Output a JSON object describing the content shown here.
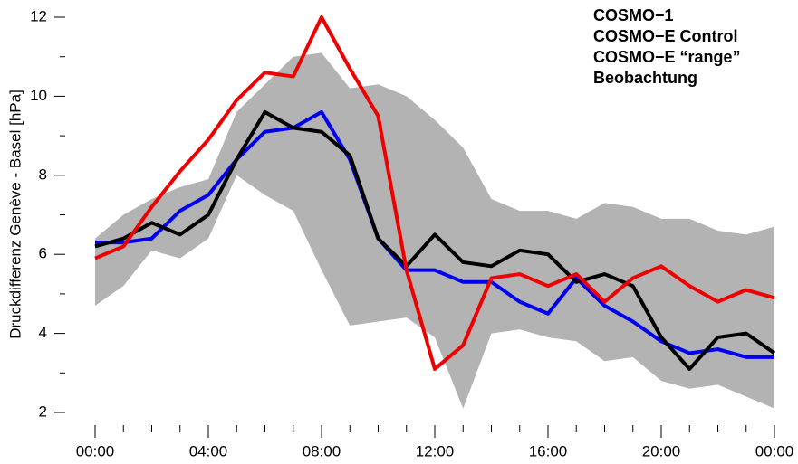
{
  "chart_data": {
    "type": "line",
    "y_label": "Druckdifferenz Genève - Basel [hPa]",
    "x": [
      0,
      1,
      2,
      3,
      4,
      5,
      6,
      7,
      8,
      9,
      10,
      11,
      12,
      13,
      14,
      15,
      16,
      17,
      18,
      19,
      20,
      21,
      22,
      23,
      24
    ],
    "xlim": [
      0,
      24
    ],
    "xticks": [
      {
        "value": 0,
        "label": "00:00"
      },
      {
        "value": 4,
        "label": "04:00"
      },
      {
        "value": 8,
        "label": "08:00"
      },
      {
        "value": 12,
        "label": "12:00"
      },
      {
        "value": 16,
        "label": "16:00"
      },
      {
        "value": 20,
        "label": "20:00"
      },
      {
        "value": 24,
        "label": "00:00"
      }
    ],
    "ylim": [
      2,
      12
    ],
    "yticks": [
      2,
      4,
      6,
      8,
      10,
      12
    ],
    "band": {
      "name": "COSMO−E “range”",
      "color": "#b3b3b3",
      "upper": [
        6.4,
        7.0,
        7.4,
        7.7,
        7.9,
        9.6,
        10.3,
        11.0,
        11.1,
        10.2,
        10.3,
        10.0,
        9.4,
        8.7,
        7.4,
        7.1,
        7.1,
        6.9,
        7.3,
        7.2,
        6.9,
        6.9,
        6.6,
        6.5,
        6.7
      ],
      "lower": [
        4.7,
        5.2,
        6.1,
        5.9,
        6.4,
        8.0,
        7.5,
        7.1,
        5.6,
        4.2,
        4.3,
        4.4,
        3.9,
        2.1,
        4.0,
        4.1,
        3.9,
        3.8,
        3.3,
        3.4,
        2.8,
        2.6,
        2.7,
        2.4,
        2.1
      ]
    },
    "series": [
      {
        "name": "COSMO−1",
        "color": "#0000ee",
        "values": [
          6.3,
          6.3,
          6.4,
          7.1,
          7.5,
          8.4,
          9.1,
          9.2,
          9.6,
          8.4,
          6.4,
          5.6,
          5.6,
          5.3,
          5.3,
          4.8,
          4.5,
          5.4,
          4.7,
          4.3,
          3.8,
          3.5,
          3.6,
          3.4,
          3.4
        ]
      },
      {
        "name": "COSMO−E Control",
        "color": "#000000",
        "values": [
          6.2,
          6.4,
          6.8,
          6.5,
          7.0,
          8.4,
          9.6,
          9.2,
          9.1,
          8.5,
          6.4,
          5.7,
          6.5,
          5.8,
          5.7,
          6.1,
          6.0,
          5.3,
          5.5,
          5.2,
          3.9,
          3.1,
          3.9,
          4.0,
          3.5
        ]
      },
      {
        "name": "Beobachtung",
        "color": "#ee0000",
        "values": [
          5.9,
          6.2,
          7.2,
          8.1,
          8.9,
          9.9,
          10.6,
          10.5,
          12.0,
          10.7,
          9.5,
          5.6,
          3.1,
          3.7,
          5.4,
          5.5,
          5.2,
          5.5,
          4.8,
          5.4,
          5.7,
          5.2,
          4.8,
          5.1,
          4.9
        ]
      }
    ],
    "legend_order": [
      "series.0",
      "series.1",
      "band",
      "series.2"
    ]
  }
}
